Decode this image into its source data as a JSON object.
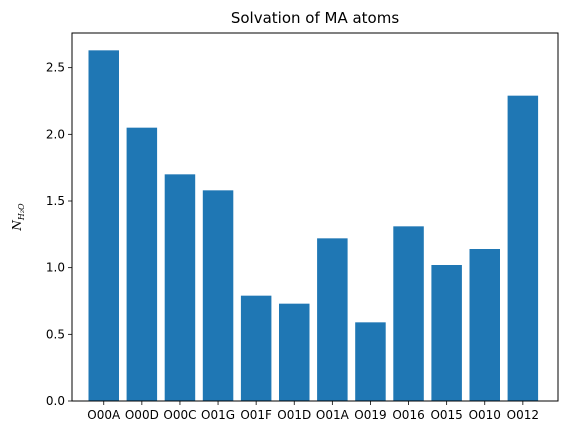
{
  "chart_data": {
    "type": "bar",
    "title": "Solvation of MA atoms",
    "xlabel": "",
    "ylabel": "N",
    "ylabel_subscript": "H₂O",
    "categories": [
      "O00A",
      "O00D",
      "O00C",
      "O01G",
      "O01F",
      "O01D",
      "O01A",
      "O019",
      "O016",
      "O015",
      "O010",
      "O012"
    ],
    "values": [
      2.63,
      2.05,
      1.7,
      1.58,
      0.79,
      0.73,
      1.22,
      0.59,
      1.31,
      1.02,
      1.14,
      2.29
    ],
    "ylim": [
      0,
      2.76
    ],
    "yticks": [
      0.0,
      0.5,
      1.0,
      1.5,
      2.0,
      2.5
    ],
    "ytick_labels": [
      "0.0",
      "0.5",
      "1.0",
      "1.5",
      "2.0",
      "2.5"
    ],
    "bar_color": "#1f77b4",
    "grid": false,
    "legend": "none"
  }
}
